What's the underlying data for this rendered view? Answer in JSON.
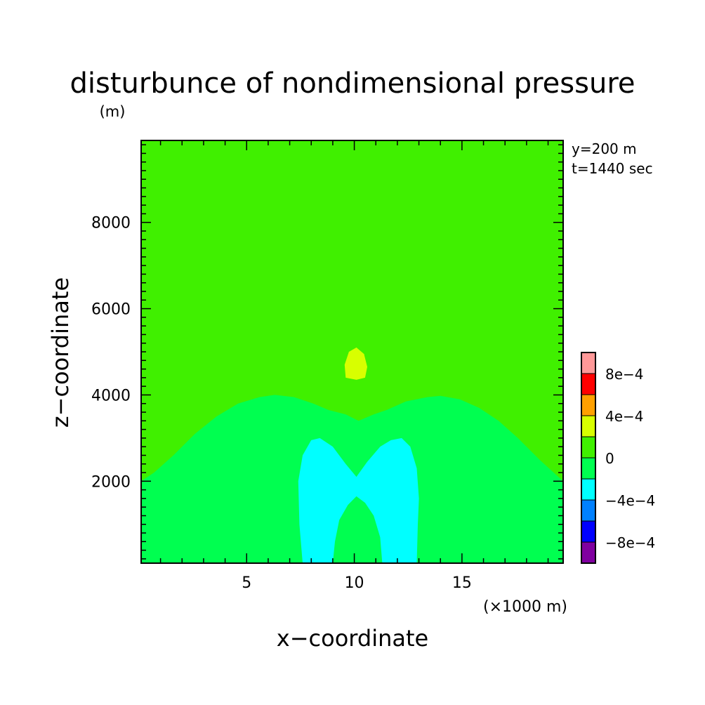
{
  "chart_data": {
    "type": "heatmap",
    "title": "disturbunce of nondimensional pressure",
    "unit": "(m)",
    "info": [
      "y=200 m",
      "t=1440 sec"
    ],
    "xlabel": "x−coordinate",
    "ylabel": "z−coordinate",
    "x_unit": "(×1000 m)",
    "xlim": [
      0.1,
      19.7
    ],
    "ylim": [
      100,
      9900
    ],
    "x_ticks": [
      5,
      10,
      15
    ],
    "x_tick_labels": [
      "5",
      "10",
      "15"
    ],
    "y_ticks": [
      2000,
      4000,
      6000,
      8000
    ],
    "y_tick_labels": [
      "2000",
      "4000",
      "6000",
      "8000"
    ],
    "levels": [
      -0.001,
      -0.0008,
      -0.0006,
      -0.0004,
      -0.0002,
      0,
      0.0002,
      0.0004,
      0.0006,
      0.0008,
      0.001
    ],
    "level_colors": [
      "#8000a0",
      "#0000ff",
      "#0080ff",
      "#00ffff",
      "#00ff50",
      "#40f000",
      "#d8ff00",
      "#ffa000",
      "#ff0000",
      "#ff9898"
    ],
    "colorbar_labels": [
      "8e−4",
      "4e−4",
      "0",
      "−4e−4",
      "−8e−4"
    ],
    "regions": [
      {
        "range": "0 to 2e-4",
        "color": "#40f000",
        "points": [
          [
            0.1,
            9900
          ],
          [
            19.7,
            9900
          ],
          [
            19.7,
            100
          ],
          [
            0.1,
            100
          ]
        ]
      },
      {
        "range": "-2e-4 to 0",
        "color": "#00ff50",
        "points": [
          [
            0.1,
            100
          ],
          [
            0.1,
            2000
          ],
          [
            0.7,
            2200
          ],
          [
            1.6,
            2600
          ],
          [
            2.6,
            3100
          ],
          [
            3.6,
            3500
          ],
          [
            4.6,
            3800
          ],
          [
            5.6,
            3950
          ],
          [
            6.3,
            4000
          ],
          [
            7.2,
            3950
          ],
          [
            8.1,
            3800
          ],
          [
            8.8,
            3650
          ],
          [
            9.6,
            3550
          ],
          [
            10.2,
            3400
          ],
          [
            10.9,
            3550
          ],
          [
            11.5,
            3650
          ],
          [
            12.4,
            3850
          ],
          [
            13.4,
            3950
          ],
          [
            14.0,
            3980
          ],
          [
            14.9,
            3900
          ],
          [
            15.8,
            3700
          ],
          [
            16.7,
            3400
          ],
          [
            17.6,
            3000
          ],
          [
            18.6,
            2500
          ],
          [
            19.7,
            2000
          ],
          [
            19.7,
            100
          ]
        ]
      },
      {
        "range": "-4e-4 to -2e-4",
        "color": "#00ffff",
        "points": [
          [
            7.6,
            100
          ],
          [
            7.45,
            1000
          ],
          [
            7.4,
            2000
          ],
          [
            7.6,
            2600
          ],
          [
            8.0,
            2950
          ],
          [
            8.4,
            3000
          ],
          [
            9.0,
            2800
          ],
          [
            9.6,
            2400
          ],
          [
            10.1,
            2100
          ],
          [
            10.6,
            2450
          ],
          [
            11.2,
            2800
          ],
          [
            11.7,
            2950
          ],
          [
            12.2,
            3000
          ],
          [
            12.6,
            2800
          ],
          [
            12.9,
            2300
          ],
          [
            13.0,
            1600
          ],
          [
            12.95,
            1000
          ],
          [
            12.9,
            100
          ],
          [
            11.3,
            100
          ],
          [
            11.2,
            700
          ],
          [
            10.9,
            1200
          ],
          [
            10.5,
            1500
          ],
          [
            10.1,
            1650
          ],
          [
            9.7,
            1450
          ],
          [
            9.3,
            1100
          ],
          [
            9.1,
            600
          ],
          [
            9.0,
            100
          ]
        ]
      },
      {
        "range": "-2e-4 to 0",
        "color": "#00ff50",
        "points": [
          [
            0.1,
            100
          ],
          [
            0.1,
            400
          ],
          [
            0.35,
            100
          ]
        ]
      },
      {
        "range": "2e-4 to 4e-4",
        "color": "#d8ff00",
        "points": [
          [
            9.6,
            4400
          ],
          [
            9.55,
            4700
          ],
          [
            9.75,
            5000
          ],
          [
            10.1,
            5100
          ],
          [
            10.45,
            4950
          ],
          [
            10.6,
            4650
          ],
          [
            10.5,
            4400
          ],
          [
            10.1,
            4350
          ]
        ]
      }
    ]
  }
}
